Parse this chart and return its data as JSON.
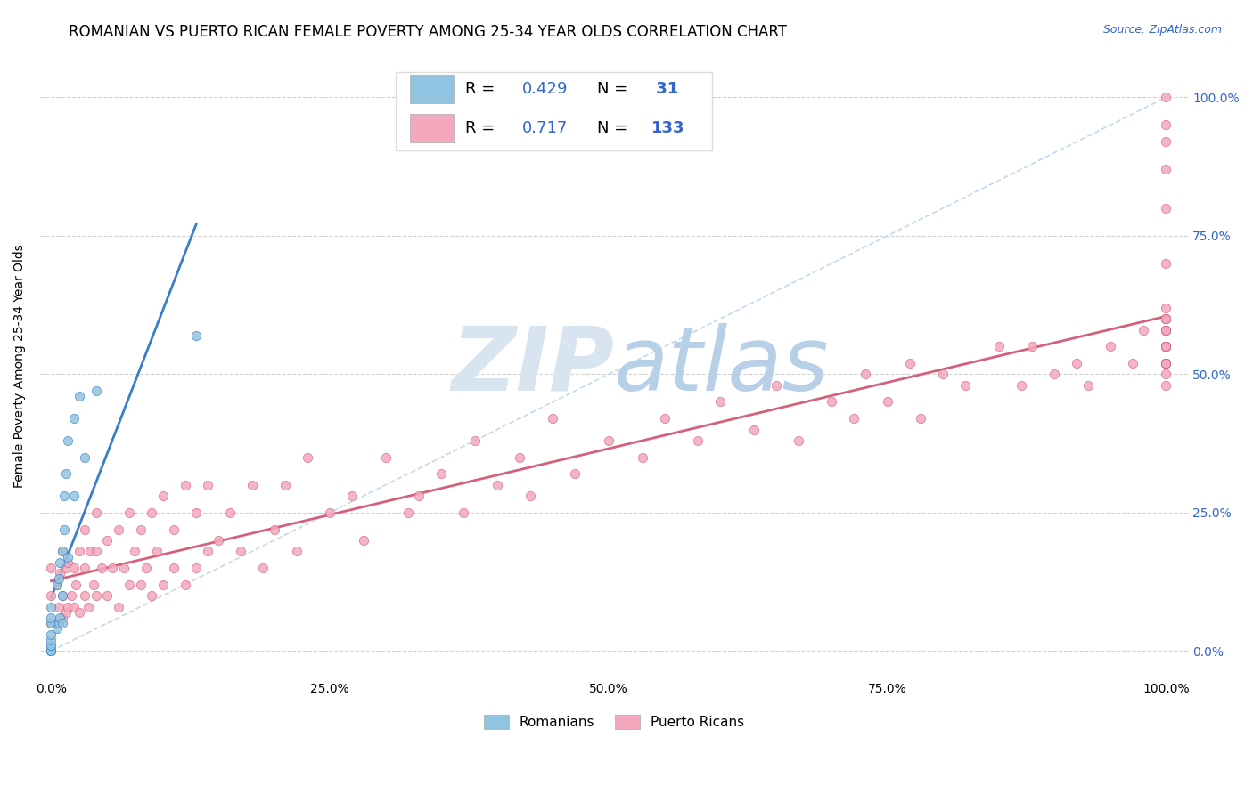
{
  "title": "ROMANIAN VS PUERTO RICAN FEMALE POVERTY AMONG 25-34 YEAR OLDS CORRELATION CHART",
  "source": "Source: ZipAtlas.com",
  "ylabel": "Female Poverty Among 25-34 Year Olds",
  "romanian_R": 0.429,
  "romanian_N": 31,
  "puerto_rican_R": 0.717,
  "puerto_rican_N": 133,
  "romanian_color": "#91c4e0",
  "puerto_rican_color": "#f4a8be",
  "romanian_line_color": "#3a7dc9",
  "puerto_rican_line_color": "#d4607a",
  "diagonal_color": "#b8cfe8",
  "legend_text_color": "#3366cc",
  "watermark_zip": "ZIP",
  "watermark_atlas": "atlas",
  "watermark_color_zip": "#d8e4ef",
  "watermark_color_atlas": "#b8cfe8",
  "background_color": "#ffffff",
  "grid_color": "#cccccc",
  "title_fontsize": 12,
  "source_fontsize": 9,
  "legend_fontsize": 13,
  "romanian_points_x": [
    0.0,
    0.0,
    0.0,
    0.0,
    0.0,
    0.0,
    0.0,
    0.0,
    0.0,
    0.0,
    0.0,
    0.005,
    0.005,
    0.007,
    0.007,
    0.008,
    0.008,
    0.01,
    0.01,
    0.01,
    0.012,
    0.012,
    0.013,
    0.015,
    0.015,
    0.02,
    0.02,
    0.025,
    0.03,
    0.04,
    0.13
  ],
  "romanian_points_y": [
    0.0,
    0.0,
    0.0,
    0.0,
    0.01,
    0.01,
    0.02,
    0.03,
    0.05,
    0.06,
    0.08,
    0.04,
    0.12,
    0.05,
    0.13,
    0.06,
    0.16,
    0.05,
    0.1,
    0.18,
    0.22,
    0.28,
    0.32,
    0.17,
    0.38,
    0.28,
    0.42,
    0.46,
    0.35,
    0.47,
    0.57
  ],
  "puerto_rican_points_x": [
    0.0,
    0.0,
    0.0,
    0.005,
    0.005,
    0.007,
    0.008,
    0.01,
    0.01,
    0.01,
    0.013,
    0.013,
    0.015,
    0.015,
    0.018,
    0.02,
    0.02,
    0.022,
    0.025,
    0.025,
    0.03,
    0.03,
    0.03,
    0.033,
    0.035,
    0.038,
    0.04,
    0.04,
    0.04,
    0.045,
    0.05,
    0.05,
    0.055,
    0.06,
    0.06,
    0.065,
    0.07,
    0.07,
    0.075,
    0.08,
    0.08,
    0.085,
    0.09,
    0.09,
    0.095,
    0.1,
    0.1,
    0.11,
    0.11,
    0.12,
    0.12,
    0.13,
    0.13,
    0.14,
    0.14,
    0.15,
    0.16,
    0.17,
    0.18,
    0.19,
    0.2,
    0.21,
    0.22,
    0.23,
    0.25,
    0.27,
    0.28,
    0.3,
    0.32,
    0.33,
    0.35,
    0.37,
    0.38,
    0.4,
    0.42,
    0.43,
    0.45,
    0.47,
    0.5,
    0.53,
    0.55,
    0.58,
    0.6,
    0.63,
    0.65,
    0.67,
    0.7,
    0.72,
    0.73,
    0.75,
    0.77,
    0.78,
    0.8,
    0.82,
    0.85,
    0.87,
    0.88,
    0.9,
    0.92,
    0.93,
    0.95,
    0.97,
    0.98,
    1.0,
    1.0,
    1.0,
    1.0,
    1.0,
    1.0,
    1.0,
    1.0,
    1.0,
    1.0,
    1.0,
    1.0,
    1.0,
    1.0,
    1.0,
    1.0,
    1.0,
    1.0,
    1.0,
    1.0,
    1.0,
    1.0,
    1.0,
    1.0,
    1.0,
    1.0,
    1.0,
    1.0,
    1.0,
    1.0
  ],
  "puerto_rican_points_y": [
    0.05,
    0.1,
    0.15,
    0.05,
    0.12,
    0.08,
    0.14,
    0.06,
    0.1,
    0.18,
    0.07,
    0.15,
    0.08,
    0.16,
    0.1,
    0.08,
    0.15,
    0.12,
    0.07,
    0.18,
    0.1,
    0.15,
    0.22,
    0.08,
    0.18,
    0.12,
    0.1,
    0.18,
    0.25,
    0.15,
    0.1,
    0.2,
    0.15,
    0.08,
    0.22,
    0.15,
    0.12,
    0.25,
    0.18,
    0.12,
    0.22,
    0.15,
    0.1,
    0.25,
    0.18,
    0.12,
    0.28,
    0.15,
    0.22,
    0.12,
    0.3,
    0.15,
    0.25,
    0.18,
    0.3,
    0.2,
    0.25,
    0.18,
    0.3,
    0.15,
    0.22,
    0.3,
    0.18,
    0.35,
    0.25,
    0.28,
    0.2,
    0.35,
    0.25,
    0.28,
    0.32,
    0.25,
    0.38,
    0.3,
    0.35,
    0.28,
    0.42,
    0.32,
    0.38,
    0.35,
    0.42,
    0.38,
    0.45,
    0.4,
    0.48,
    0.38,
    0.45,
    0.42,
    0.5,
    0.45,
    0.52,
    0.42,
    0.5,
    0.48,
    0.55,
    0.48,
    0.55,
    0.5,
    0.52,
    0.48,
    0.55,
    0.52,
    0.58,
    0.52,
    0.55,
    0.48,
    0.52,
    0.55,
    0.58,
    0.6,
    0.52,
    0.55,
    0.58,
    0.52,
    0.6,
    0.55,
    0.5,
    0.52,
    0.55,
    0.58,
    0.6,
    0.52,
    0.55,
    0.58,
    0.62,
    0.55,
    0.6,
    0.7,
    0.8,
    0.87,
    0.92,
    0.95,
    1.0
  ]
}
